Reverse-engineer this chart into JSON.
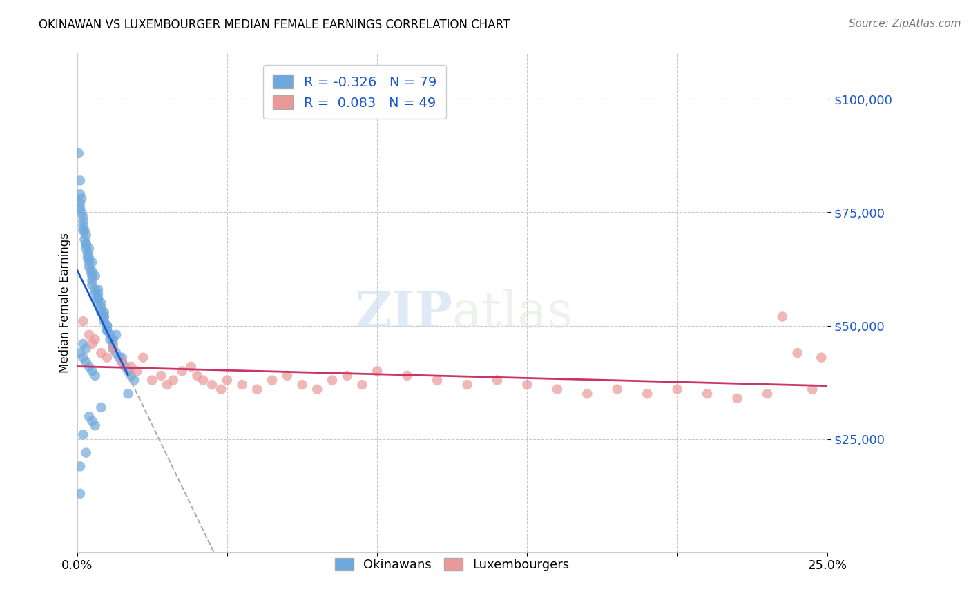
{
  "title": "OKINAWAN VS LUXEMBOURGER MEDIAN FEMALE EARNINGS CORRELATION CHART",
  "source": "Source: ZipAtlas.com",
  "ylabel": "Median Female Earnings",
  "ytick_labels": [
    "$25,000",
    "$50,000",
    "$75,000",
    "$100,000"
  ],
  "ytick_values": [
    25000,
    50000,
    75000,
    100000
  ],
  "xlim": [
    0.0,
    0.25
  ],
  "ylim": [
    0,
    110000
  ],
  "okinawan_color": "#6fa8dc",
  "luxembourger_color": "#ea9999",
  "okinawan_line_color": "#1a56cc",
  "luxembourger_line_color": "#cc3366",
  "background_color": "#ffffff",
  "okinawan_R": -0.326,
  "luxembourger_R": 0.083,
  "okinawan_N": 79,
  "luxembourger_N": 49,
  "okinawan_x": [
    0.0005,
    0.001,
    0.001,
    0.0015,
    0.0015,
    0.002,
    0.002,
    0.0025,
    0.0025,
    0.003,
    0.003,
    0.0035,
    0.0035,
    0.004,
    0.004,
    0.0045,
    0.005,
    0.005,
    0.005,
    0.006,
    0.006,
    0.007,
    0.007,
    0.008,
    0.008,
    0.009,
    0.009,
    0.01,
    0.01,
    0.011,
    0.011,
    0.012,
    0.012,
    0.013,
    0.014,
    0.015,
    0.016,
    0.017,
    0.018,
    0.019,
    0.001,
    0.002,
    0.003,
    0.004,
    0.005,
    0.006,
    0.007,
    0.008,
    0.009,
    0.01,
    0.001,
    0.002,
    0.003,
    0.004,
    0.005,
    0.006,
    0.002,
    0.003,
    0.001,
    0.002,
    0.003,
    0.004,
    0.005,
    0.007,
    0.009,
    0.012,
    0.015,
    0.01,
    0.013,
    0.007,
    0.001,
    0.001,
    0.002,
    0.003,
    0.004,
    0.005,
    0.006,
    0.008,
    0.017
  ],
  "okinawan_y": [
    88000,
    82000,
    79000,
    78000,
    75000,
    74000,
    72000,
    71000,
    69000,
    68000,
    67000,
    66000,
    65000,
    64000,
    63000,
    62000,
    61000,
    60000,
    59000,
    58000,
    57000,
    56000,
    55000,
    54000,
    53000,
    52000,
    51000,
    50000,
    49000,
    48000,
    47000,
    46000,
    45000,
    44000,
    43000,
    42000,
    41000,
    40000,
    39000,
    38000,
    77000,
    73000,
    70000,
    67000,
    64000,
    61000,
    58000,
    55000,
    52000,
    49000,
    44000,
    43000,
    42000,
    41000,
    40000,
    39000,
    46000,
    45000,
    76000,
    71000,
    68000,
    65000,
    62000,
    56000,
    53000,
    47000,
    43000,
    50000,
    48000,
    57000,
    19000,
    13000,
    26000,
    22000,
    30000,
    29000,
    28000,
    32000,
    35000
  ],
  "luxembourger_x": [
    0.002,
    0.004,
    0.005,
    0.006,
    0.008,
    0.01,
    0.012,
    0.015,
    0.018,
    0.02,
    0.022,
    0.025,
    0.028,
    0.03,
    0.032,
    0.035,
    0.038,
    0.04,
    0.042,
    0.045,
    0.048,
    0.05,
    0.055,
    0.06,
    0.065,
    0.07,
    0.075,
    0.08,
    0.085,
    0.09,
    0.095,
    0.1,
    0.11,
    0.12,
    0.13,
    0.14,
    0.15,
    0.16,
    0.17,
    0.18,
    0.19,
    0.2,
    0.21,
    0.22,
    0.23,
    0.235,
    0.24,
    0.245,
    0.248
  ],
  "luxembourger_y": [
    51000,
    48000,
    46000,
    47000,
    44000,
    43000,
    45000,
    42000,
    41000,
    40000,
    43000,
    38000,
    39000,
    37000,
    38000,
    40000,
    41000,
    39000,
    38000,
    37000,
    36000,
    38000,
    37000,
    36000,
    38000,
    39000,
    37000,
    36000,
    38000,
    39000,
    37000,
    40000,
    39000,
    38000,
    37000,
    38000,
    37000,
    36000,
    35000,
    36000,
    35000,
    36000,
    35000,
    34000,
    35000,
    52000,
    44000,
    36000,
    43000
  ]
}
